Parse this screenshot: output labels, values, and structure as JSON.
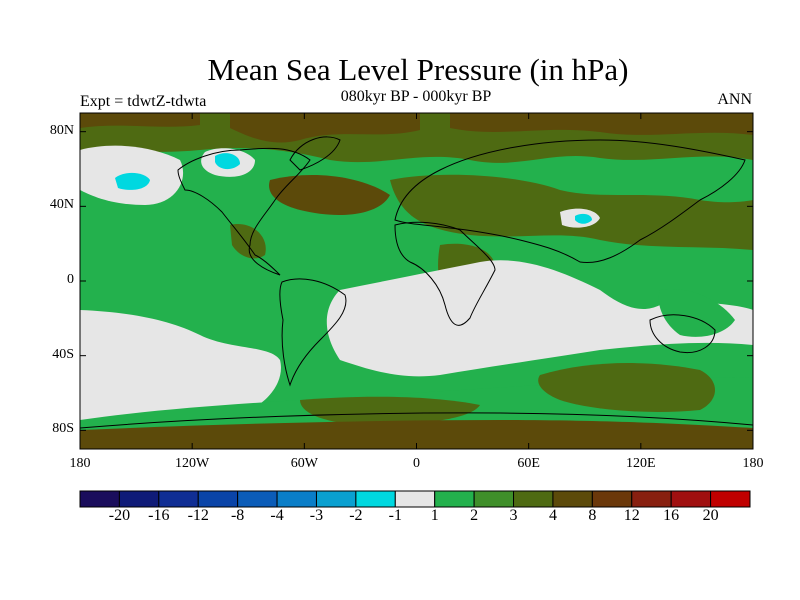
{
  "title": "Mean Sea Level Pressure (in hPa)",
  "expt_label": "Expt = tdwtZ-tdwta",
  "subtitle": "080kyr BP - 000kyr BP",
  "season": "ANN",
  "map": {
    "lon_range": [
      -180,
      180
    ],
    "lat_range": [
      -90,
      90
    ],
    "x_ticks": [
      {
        "value": -180,
        "label": "180"
      },
      {
        "value": -120,
        "label": "120W"
      },
      {
        "value": -60,
        "label": "60W"
      },
      {
        "value": 0,
        "label": "0"
      },
      {
        "value": 60,
        "label": "60E"
      },
      {
        "value": 120,
        "label": "120E"
      },
      {
        "value": 180,
        "label": "180"
      }
    ],
    "y_ticks": [
      {
        "value": 80,
        "label": "80N"
      },
      {
        "value": 40,
        "label": "40N"
      },
      {
        "value": 0,
        "label": "0"
      },
      {
        "value": -40,
        "label": "40S"
      },
      {
        "value": -80,
        "label": "80S"
      }
    ]
  },
  "colorbar": {
    "colors": [
      "#1a0d5c",
      "#0f1b78",
      "#102e94",
      "#0a44a8",
      "#0b5cb8",
      "#0a7ec8",
      "#0aa0d0",
      "#00d8e0",
      "#e6e6e6",
      "#23b14d",
      "#3f8f2a",
      "#4e6a12",
      "#5c4a0a",
      "#6b380a",
      "#882010",
      "#a01010",
      "#c00000"
    ],
    "labels": [
      "-20",
      "-16",
      "-12",
      "-8",
      "-4",
      "-3",
      "-2",
      "-1",
      "1",
      "2",
      "3",
      "4",
      "8",
      "12",
      "16",
      "20"
    ]
  }
}
